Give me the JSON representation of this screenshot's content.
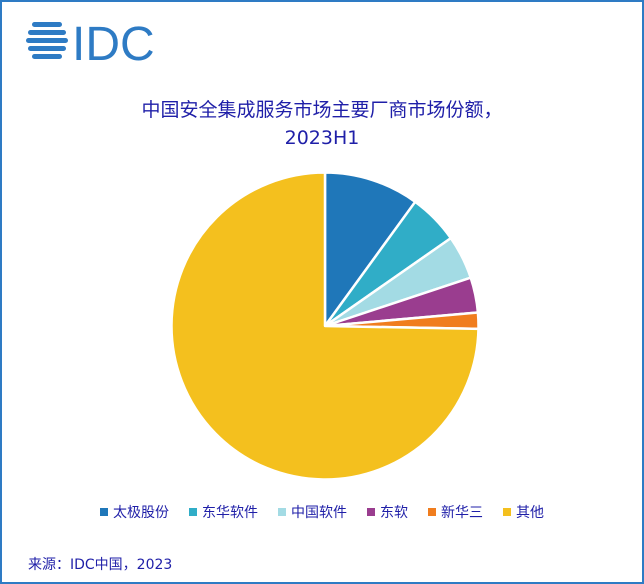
{
  "logo": {
    "text": "IDC",
    "color": "#2e7bc4"
  },
  "chart_data": {
    "type": "pie",
    "title": "中国安全集成服务市场主要厂商市场份额，2023H1",
    "title_lines": [
      "中国安全集成服务市场主要厂商市场份额，",
      "2023H1"
    ],
    "categories": [
      "太极股份",
      "东华软件",
      "中国软件",
      "东软",
      "新华三",
      "其他"
    ],
    "values": [
      10.0,
      5.3,
      4.6,
      3.7,
      1.7,
      74.7
    ],
    "unit": "%",
    "colors": [
      "#1f77b9",
      "#30adc7",
      "#a3dbe4",
      "#9a3d8f",
      "#f07d1e",
      "#f4c01e"
    ],
    "start_angle": "12 o'clock, clockwise",
    "legend_position": "bottom",
    "data_labels": false
  },
  "legend": [
    {
      "label": "太极股份",
      "color": "#1f77b9"
    },
    {
      "label": "东华软件",
      "color": "#30adc7"
    },
    {
      "label": "中国软件",
      "color": "#a3dbe4"
    },
    {
      "label": "东软",
      "color": "#9a3d8f"
    },
    {
      "label": "新华三",
      "color": "#f07d1e"
    },
    {
      "label": "其他",
      "color": "#f4c01e"
    }
  ],
  "source": "来源：IDC中国，2023"
}
